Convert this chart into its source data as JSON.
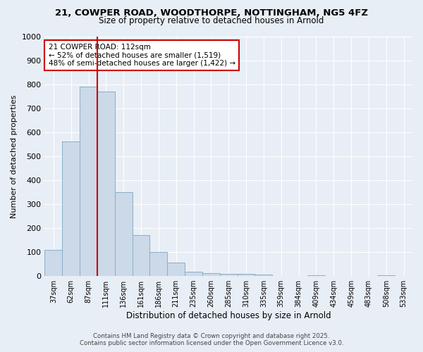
{
  "title_line1": "21, COWPER ROAD, WOODTHORPE, NOTTINGHAM, NG5 4FZ",
  "title_line2": "Size of property relative to detached houses in Arnold",
  "xlabel": "Distribution of detached houses by size in Arnold",
  "ylabel": "Number of detached properties",
  "categories": [
    "37sqm",
    "62sqm",
    "87sqm",
    "111sqm",
    "136sqm",
    "161sqm",
    "186sqm",
    "211sqm",
    "235sqm",
    "260sqm",
    "285sqm",
    "310sqm",
    "335sqm",
    "359sqm",
    "384sqm",
    "409sqm",
    "434sqm",
    "459sqm",
    "483sqm",
    "508sqm",
    "533sqm"
  ],
  "values": [
    110,
    560,
    790,
    770,
    350,
    170,
    100,
    55,
    18,
    13,
    10,
    8,
    6,
    2,
    2,
    5,
    2,
    2,
    2,
    5,
    2
  ],
  "bar_color": "#ccd9e8",
  "bar_edge_color": "#89aec8",
  "vline_x": 3,
  "vline_color": "#cc0000",
  "annotation_text": "21 COWPER ROAD: 112sqm\n← 52% of detached houses are smaller (1,519)\n48% of semi-detached houses are larger (1,422) →",
  "annotation_box_facecolor": "#ffffff",
  "annotation_box_edgecolor": "#cc0000",
  "ylim": [
    0,
    1000
  ],
  "yticks": [
    0,
    100,
    200,
    300,
    400,
    500,
    600,
    700,
    800,
    900,
    1000
  ],
  "background_color": "#e8eef5",
  "grid_color": "#ffffff",
  "title_fontsize": 9.5,
  "subtitle_fontsize": 8.5,
  "footer": "Contains HM Land Registry data © Crown copyright and database right 2025.\nContains public sector information licensed under the Open Government Licence v3.0."
}
